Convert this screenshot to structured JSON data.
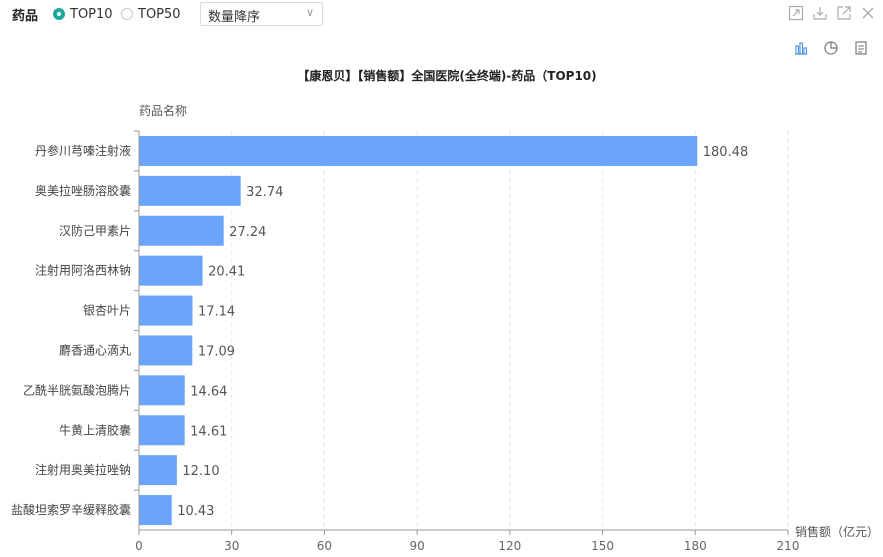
{
  "filter": {
    "label": "药品",
    "options": [
      {
        "label": "TOP10",
        "selected": true
      },
      {
        "label": "TOP50",
        "selected": false
      }
    ],
    "sort_select": {
      "value": "数量降序"
    }
  },
  "window_icons": [
    "maximize-icon",
    "download-icon",
    "open-external-icon",
    "close-icon"
  ],
  "chart_icons": [
    "bar-chart-icon",
    "pie-chart-icon",
    "table-icon"
  ],
  "colors": {
    "bar": "#6aa5fb",
    "accent": "#1aa99b",
    "grid": "#e3e3e3"
  },
  "chart_data": {
    "type": "bar",
    "orientation": "horizontal",
    "title": "【康恩贝】【销售额】全国医院(全终端)-药品（TOP10)",
    "ylabel": "药品名称",
    "xlabel": "销售额（亿元）",
    "categories": [
      "丹参川芎嗪注射液",
      "奥美拉唑肠溶胶囊",
      "汉防己甲素片",
      "注射用阿洛西林钠",
      "银杏叶片",
      "麝香通心滴丸",
      "乙酰半胱氨酸泡腾片",
      "牛黄上清胶囊",
      "注射用奥美拉唑钠",
      "盐酸坦索罗辛缓释胶囊"
    ],
    "values": [
      180.48,
      32.74,
      27.24,
      20.41,
      17.14,
      17.09,
      14.64,
      14.61,
      12.1,
      10.43
    ],
    "value_labels": [
      "180.48",
      "32.74",
      "27.24",
      "20.41",
      "17.14",
      "17.09",
      "14.64",
      "14.61",
      "12.10",
      "10.43"
    ],
    "xlim": [
      0,
      210
    ],
    "xticks": [
      "0",
      "30",
      "60",
      "90",
      "120",
      "150",
      "180",
      "210"
    ],
    "grid": true
  }
}
